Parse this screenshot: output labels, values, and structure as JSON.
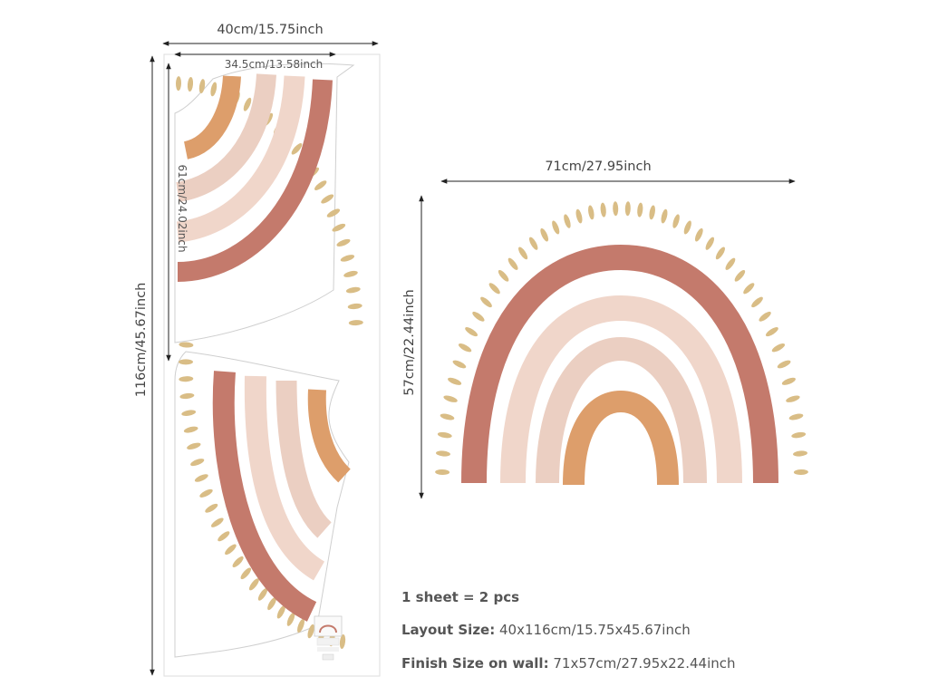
{
  "dimensions": {
    "sheet_width": "40cm/15.75inch",
    "sheet_height": "116cm/45.67inch",
    "piece_width": "34.5cm/13.58inch",
    "piece_height": "61cm/24.02inch",
    "finished_width": "71cm/27.95inch",
    "finished_height": "57cm/22.44inch"
  },
  "info": {
    "quantity": "1 sheet = 2 pcs",
    "layout_label": "Layout Size:",
    "layout_value": "40x116cm/15.75x45.67inch",
    "finish_label": "Finish Size on wall:",
    "finish_value": "71x57cm/27.95x22.44inch"
  },
  "colors": {
    "terracotta": "#c47a6c",
    "pink": "#f0d6ca",
    "blush": "#ebcfc2",
    "orange": "#dd9e6b",
    "dots": "#d9bd86",
    "line": "#222222"
  }
}
